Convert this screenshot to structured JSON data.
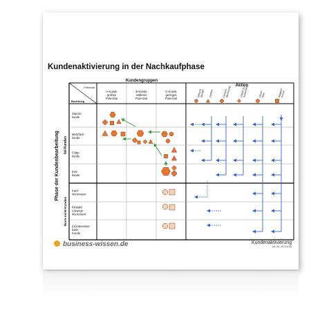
{
  "title": "Kundenaktivierung in der Nachkaufphase",
  "headers": {
    "kundengruppen": "Kundengruppen",
    "aktion": "Aktion",
    "potenzial": "Potenzial",
    "beziehung": "Beziehung",
    "phase": "Phase der Kundenbearbeitung",
    "ist_kunden": "Ist-Kunden",
    "nicht_kunden": "Noch-nicht-Kunden"
  },
  "groups": [
    {
      "lines": [
        "A-Kunde",
        "großes",
        "Potenzial"
      ]
    },
    {
      "lines": [
        "B-Kunde",
        "mittleres",
        "Potenzial"
      ]
    },
    {
      "lines": [
        "C-Kunde",
        "geringes",
        "Potenzial"
      ]
    }
  ],
  "actions": [
    {
      "lines": [
        "Besuch",
        "Berater"
      ],
      "icon": "hexagon-icon"
    },
    {
      "lines": [
        "Hotline"
      ],
      "icon": "triangle-icon"
    },
    {
      "lines": [
        "Persönl.",
        "Betreuung"
      ],
      "icon": "cross-icon"
    },
    {
      "lines": [
        "Check-Zu-",
        "friedenheit"
      ],
      "icon": "diamond-icon"
    },
    {
      "lines": [
        "Direct-",
        "Mail"
      ],
      "icon": "circle-icon"
    },
    {
      "lines": [
        "Magazin",
        "Forum"
      ],
      "icon": "square-icon"
    }
  ],
  "rows": [
    {
      "lines": [
        "Stamm-",
        "kunde"
      ]
    },
    {
      "lines": [
        "Mehrfach-",
        "kunde"
      ]
    },
    {
      "lines": [
        "Folge-",
        "kunde"
      ]
    },
    {
      "lines": [
        "Erst-",
        "kunde"
      ]
    },
    {
      "lines": [
        "Kauf-",
        "interessent"
      ]
    },
    {
      "lines": [
        "Produkt-",
        "Lösungs-",
        "interessent"
      ]
    },
    {
      "lines": [
        "(re)interessier-",
        "barer",
        "Kunde"
      ]
    }
  ],
  "footer": {
    "logo": "business-wissen.de",
    "doc_title": "Kundenaktivierung",
    "doc_number": "Art.-Nr. 39.104.05"
  },
  "colors": {
    "shape_fill": "#e8762c",
    "shape_stroke": "#8a3a10",
    "muted_fill": "#f5d4b8",
    "arrow_blue": "#3366cc",
    "arrow_green": "#2f9a3a",
    "logo_dot": "#f0a020"
  }
}
